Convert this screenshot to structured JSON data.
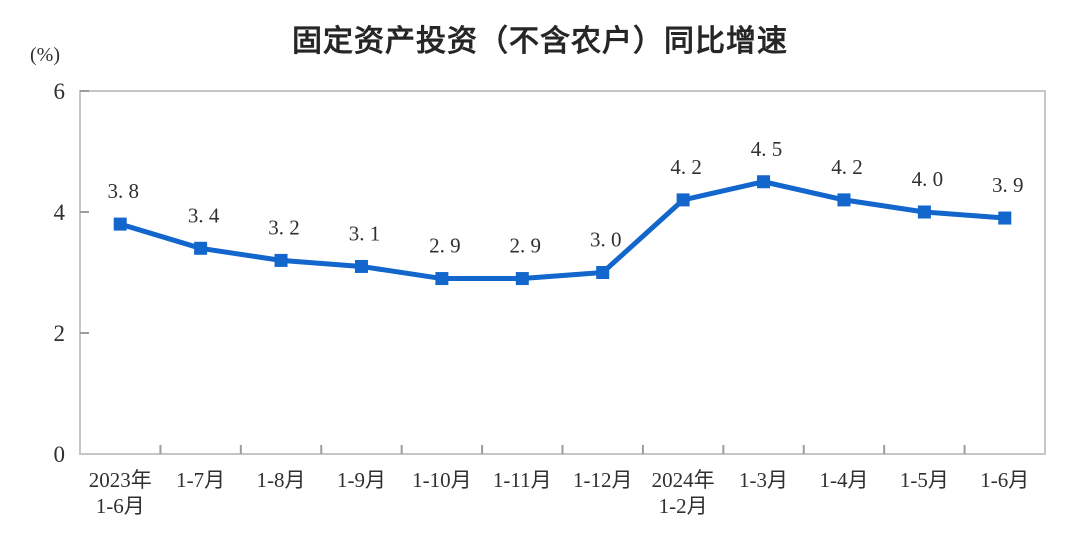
{
  "chart_data": {
    "type": "line",
    "title": "固定资产投资（不含农户）同比增速",
    "unit_label": "(%)",
    "xlabel": "",
    "ylabel": "(%)",
    "categories": [
      "2023年\n1-6月",
      "1-7月",
      "1-8月",
      "1-9月",
      "1-10月",
      "1-11月",
      "1-12月",
      "2024年\n1-2月",
      "1-3月",
      "1-4月",
      "1-5月",
      "1-6月"
    ],
    "values": [
      3.8,
      3.4,
      3.2,
      3.1,
      2.9,
      2.9,
      3.0,
      4.2,
      4.5,
      4.2,
      4.0,
      3.9
    ],
    "point_labels": [
      "3. 8",
      "3. 4",
      "3. 2",
      "3. 1",
      "2. 9",
      "2. 9",
      "3. 0",
      "4. 2",
      "4. 5",
      "4. 2",
      "4. 0",
      "3. 9"
    ],
    "y_ticks": [
      0,
      2,
      4,
      6
    ],
    "ylim": [
      0,
      6
    ],
    "grid": false,
    "legend": "none",
    "line_color": "#1366CB",
    "marker": "square",
    "frame_color": "#C6C6C6",
    "tick_color": "#9C9C9C",
    "text_color": "#303030"
  }
}
